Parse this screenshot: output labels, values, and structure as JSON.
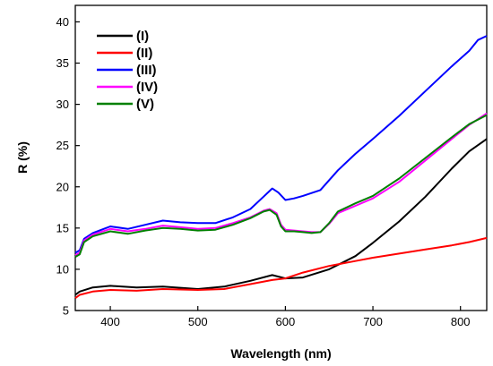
{
  "chart_data": {
    "type": "line",
    "title": "",
    "xlabel": "Wavelength (nm)",
    "ylabel": "R (%)",
    "xlim": [
      360,
      830
    ],
    "ylim": [
      5,
      42
    ],
    "xticks": [
      400,
      500,
      600,
      700,
      800
    ],
    "yticks": [
      5,
      10,
      15,
      20,
      25,
      30,
      35,
      40
    ],
    "grid": false,
    "legend_position": "top-left",
    "series": [
      {
        "name": "(I)",
        "color": "#000000",
        "x": [
          360,
          365,
          380,
          400,
          430,
          460,
          500,
          530,
          560,
          585,
          600,
          620,
          650,
          680,
          700,
          730,
          760,
          790,
          810,
          830
        ],
        "y": [
          6.9,
          7.3,
          7.8,
          8.0,
          7.8,
          7.9,
          7.6,
          7.9,
          8.6,
          9.3,
          8.9,
          9.0,
          10.0,
          11.6,
          13.2,
          15.8,
          18.8,
          22.2,
          24.3,
          25.8
        ]
      },
      {
        "name": "(II)",
        "color": "#ff0000",
        "x": [
          360,
          365,
          380,
          400,
          430,
          460,
          500,
          530,
          560,
          585,
          600,
          620,
          650,
          680,
          700,
          730,
          760,
          790,
          810,
          830
        ],
        "y": [
          6.5,
          6.9,
          7.3,
          7.5,
          7.4,
          7.6,
          7.5,
          7.6,
          8.2,
          8.7,
          8.9,
          9.6,
          10.4,
          11.0,
          11.4,
          11.9,
          12.4,
          12.9,
          13.3,
          13.8
        ]
      },
      {
        "name": "(III)",
        "color": "#0000ff",
        "x": [
          360,
          365,
          370,
          380,
          400,
          420,
          440,
          460,
          480,
          500,
          520,
          540,
          560,
          575,
          585,
          592,
          600,
          610,
          620,
          640,
          660,
          680,
          700,
          730,
          760,
          790,
          810,
          820,
          830
        ],
        "y": [
          12.0,
          12.3,
          13.7,
          14.4,
          15.2,
          14.9,
          15.4,
          15.9,
          15.7,
          15.6,
          15.6,
          16.3,
          17.3,
          18.8,
          19.8,
          19.3,
          18.4,
          18.6,
          18.9,
          19.6,
          22.0,
          24.0,
          25.8,
          28.6,
          31.6,
          34.6,
          36.5,
          37.8,
          38.3
        ]
      },
      {
        "name": "(IV)",
        "color": "#ff00ff",
        "x": [
          360,
          365,
          370,
          380,
          400,
          420,
          440,
          460,
          480,
          500,
          520,
          540,
          560,
          575,
          582,
          590,
          595,
          600,
          610,
          620,
          630,
          640,
          650,
          660,
          680,
          700,
          730,
          760,
          790,
          810,
          830
        ],
        "y": [
          11.7,
          12.0,
          13.5,
          14.2,
          14.9,
          14.6,
          14.9,
          15.3,
          15.1,
          14.9,
          15.0,
          15.6,
          16.3,
          17.1,
          17.3,
          16.8,
          15.4,
          14.8,
          14.7,
          14.6,
          14.5,
          14.5,
          15.5,
          16.8,
          17.7,
          18.6,
          20.6,
          23.2,
          25.8,
          27.5,
          28.9
        ]
      },
      {
        "name": "(V)",
        "color": "#008000",
        "x": [
          360,
          365,
          370,
          380,
          400,
          420,
          440,
          460,
          480,
          500,
          520,
          540,
          560,
          575,
          582,
          590,
          595,
          600,
          610,
          620,
          630,
          640,
          650,
          660,
          680,
          700,
          730,
          760,
          790,
          810,
          830
        ],
        "y": [
          11.5,
          11.8,
          13.3,
          14.0,
          14.6,
          14.3,
          14.7,
          15.0,
          14.9,
          14.7,
          14.8,
          15.4,
          16.2,
          17.0,
          17.2,
          16.6,
          15.2,
          14.6,
          14.6,
          14.5,
          14.4,
          14.5,
          15.6,
          17.0,
          18.0,
          18.9,
          21.0,
          23.5,
          26.0,
          27.6,
          28.7
        ]
      }
    ]
  }
}
